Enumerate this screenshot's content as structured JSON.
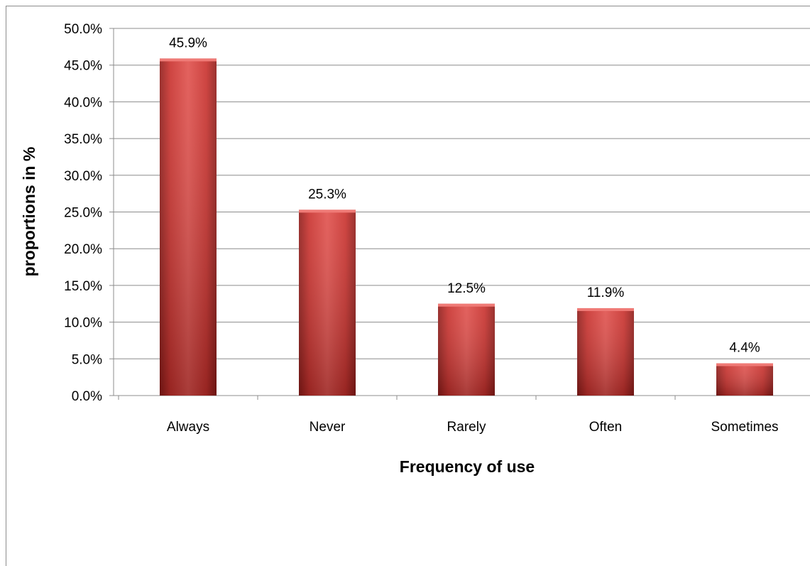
{
  "chart_data": {
    "type": "bar",
    "categories": [
      "Always",
      "Never",
      "Rarely",
      "Often",
      "Sometimes"
    ],
    "values": [
      45.9,
      25.3,
      12.5,
      11.9,
      4.4
    ],
    "data_labels": [
      "45.9%",
      "25.3%",
      "12.5%",
      "11.9%",
      "4.4%"
    ],
    "title": "",
    "xlabel": "Frequency of use",
    "ylabel": "proportions in %",
    "ylim": [
      0,
      50
    ],
    "yticks": [
      0,
      5,
      10,
      15,
      20,
      25,
      30,
      35,
      40,
      45,
      50
    ],
    "ytick_labels": [
      "0.0%",
      "5.0%",
      "10.0%",
      "15.0%",
      "20.0%",
      "25.0%",
      "30.0%",
      "35.0%",
      "40.0%",
      "45.0%",
      "50.0%"
    ],
    "grid": true,
    "legend": "none",
    "bar_color": "#c9302c"
  }
}
